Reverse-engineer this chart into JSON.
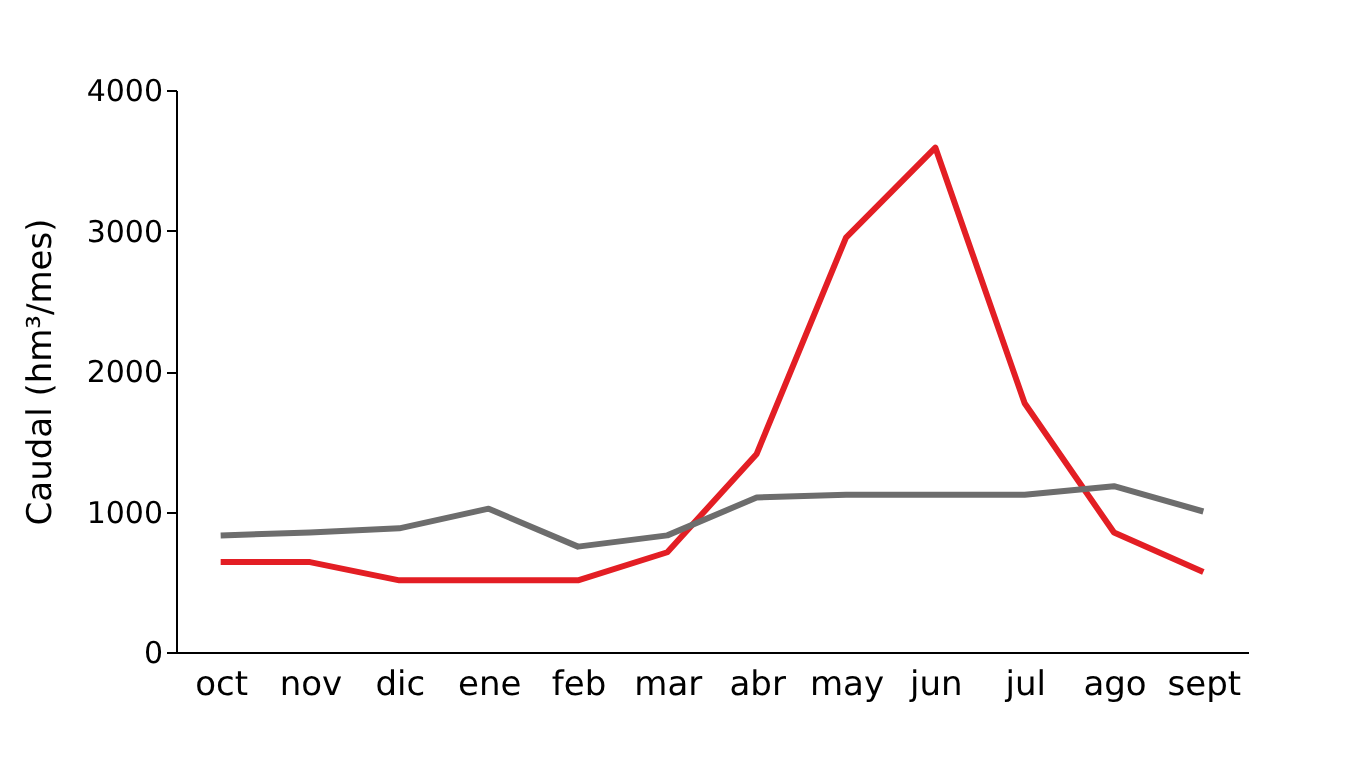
{
  "chart_data": {
    "type": "line",
    "ylabel": "Caudal (hm³/mes)",
    "categories": [
      "oct",
      "nov",
      "dic",
      "ene",
      "feb",
      "mar",
      "abr",
      "may",
      "jun",
      "jul",
      "ago",
      "sept"
    ],
    "series": [
      {
        "color": "#e31e24",
        "values": [
          640,
          640,
          510,
          510,
          510,
          710,
          1410,
          2950,
          3590,
          1770,
          850,
          570
        ]
      },
      {
        "color": "#6d6d6d",
        "values": [
          830,
          850,
          880,
          1020,
          750,
          830,
          1100,
          1120,
          1120,
          1120,
          1180,
          1000
        ]
      }
    ],
    "ylim": [
      0,
      4000
    ],
    "yticks": [
      0,
      1000,
      2000,
      3000,
      4000
    ],
    "grid": false,
    "legend": false,
    "marker": "none",
    "line_style": "solid"
  }
}
